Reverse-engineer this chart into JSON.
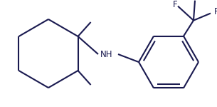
{
  "bg_color": "#ffffff",
  "bond_color": "#1a1a50",
  "bond_lw": 1.5,
  "text_color": "#1a1a50",
  "font_size": 8.5,
  "figsize": [
    3.05,
    1.5
  ],
  "dpi": 100,
  "xlim": [
    0,
    305
  ],
  "ylim": [
    0,
    150
  ]
}
